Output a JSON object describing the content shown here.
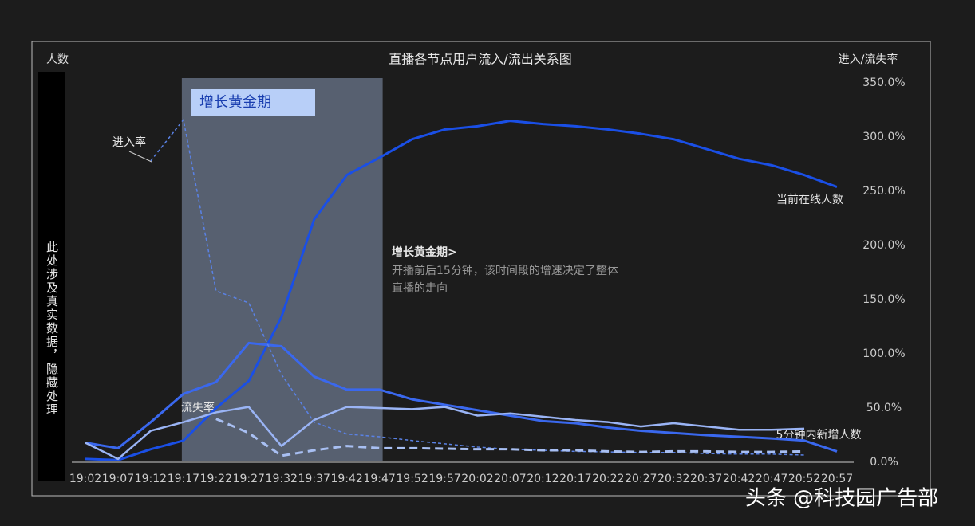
{
  "chart_data": {
    "type": "line",
    "title": "直播各节点用户流入/流出关系图",
    "y_label": "人数",
    "y2_label": "进入/流失率",
    "y_note": "此处涉及真实数据，隐藏处理",
    "categories": [
      "19:02",
      "19:07",
      "19:12",
      "19:17",
      "19:22",
      "19:27",
      "19:32",
      "19:37",
      "19:42",
      "19:47",
      "19:52",
      "19:57",
      "20:02",
      "20:07",
      "20:12",
      "20:17",
      "20:22",
      "20:27",
      "20:32",
      "20:37",
      "20:42",
      "20:47",
      "20:52",
      "20:57"
    ],
    "ylim": [
      0,
      350
    ],
    "y2lim": [
      0,
      350
    ],
    "y2ticks": [
      {
        "value": 0,
        "label": "0.0%"
      },
      {
        "value": 50,
        "label": "50.0%"
      },
      {
        "value": 100,
        "label": "100.0%"
      },
      {
        "value": 150,
        "label": "150.0%"
      },
      {
        "value": 200,
        "label": "200.0%"
      },
      {
        "value": 250,
        "label": "250.0%"
      },
      {
        "value": 300,
        "label": "300.0%"
      },
      {
        "value": 350,
        "label": "350.0%"
      }
    ],
    "series": [
      {
        "name": "当前在线人数",
        "color": "#1a4fe6",
        "width": 3,
        "dashed": false,
        "axis": "y",
        "values": [
          3,
          2,
          12,
          20,
          50,
          75,
          134,
          224,
          265,
          281,
          298,
          307,
          310,
          315,
          312,
          310,
          307,
          303,
          298,
          289,
          280,
          274,
          265,
          254
        ]
      },
      {
        "color": "#3a68ee",
        "width": 3,
        "dashed": false,
        "axis": "y",
        "values": [
          18,
          13,
          37,
          63,
          74,
          110,
          107,
          79,
          67,
          67,
          58,
          53,
          48,
          43,
          38,
          36,
          32,
          29,
          27,
          25,
          23.5,
          22,
          20,
          10
        ]
      },
      {
        "name": "5分钟内新增人数",
        "color": "#9ab4f5",
        "width": 2.5,
        "dashed": false,
        "axis": "y",
        "values": [
          18,
          3,
          29,
          37,
          46,
          51,
          15,
          39,
          51,
          50,
          49,
          51,
          43,
          45,
          42,
          39,
          37,
          33,
          36,
          33,
          30,
          30,
          31,
          null
        ]
      },
      {
        "name": "进入率",
        "color": "#5a82e6",
        "width": 1.5,
        "dashed": true,
        "axis": "y2",
        "values": [
          null,
          null,
          278,
          316,
          158,
          147,
          81,
          37,
          26,
          23.5,
          20,
          17,
          14,
          12,
          11,
          10,
          9.5,
          9,
          9,
          8,
          7.5,
          7.5,
          6.6,
          null
        ]
      },
      {
        "name": "流失率",
        "color": "#a8bff2",
        "width": 3,
        "dashed": true,
        "axis": "y2",
        "values": [
          null,
          null,
          null,
          null,
          40,
          27,
          6,
          11,
          15,
          13,
          13,
          12.5,
          12,
          12,
          11,
          11,
          10,
          9.5,
          10,
          10,
          9.5,
          9.5,
          10,
          null
        ]
      }
    ],
    "highlight": {
      "from": "19:17",
      "to": "19:47",
      "label": "增长黄金期"
    },
    "annotation": {
      "title": "增长黄金期>",
      "lines": [
        "开播前后15分钟，该时间段的增速决定了整体",
        "直播的走向"
      ]
    },
    "watermark": "头条 @科技园广告部"
  }
}
